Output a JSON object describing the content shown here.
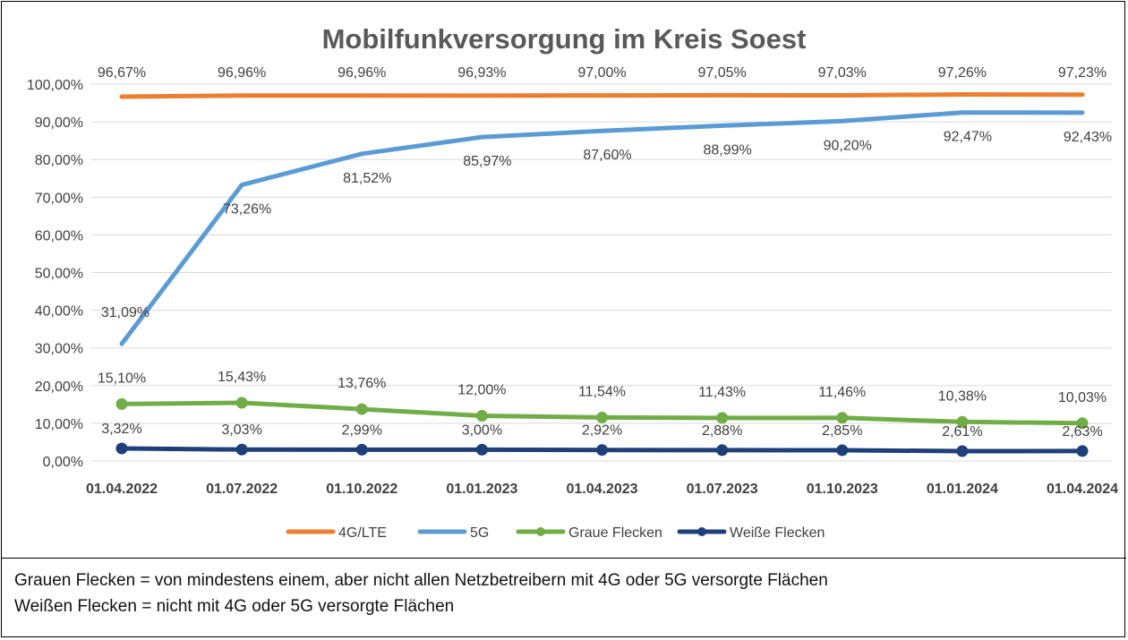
{
  "chart_data": {
    "type": "line",
    "title": "Mobilfunkversorgung im Kreis Soest",
    "xlabel": "",
    "ylabel": "",
    "categories": [
      "01.04.2022",
      "01.07.2022",
      "01.10.2022",
      "01.01.2023",
      "01.04.2023",
      "01.07.2023",
      "01.10.2023",
      "01.01.2024",
      "01.04.2024"
    ],
    "ylim": [
      0,
      100
    ],
    "yticks": [
      "0,00%",
      "10,00%",
      "20,00%",
      "30,00%",
      "40,00%",
      "50,00%",
      "60,00%",
      "70,00%",
      "80,00%",
      "90,00%",
      "100,00%"
    ],
    "grid": true,
    "legend_position": "bottom",
    "series": [
      {
        "name": "4G/LTE",
        "color": "#ED7D31",
        "markers": false,
        "values": [
          96.67,
          96.96,
          96.96,
          96.93,
          97.0,
          97.05,
          97.03,
          97.26,
          97.23
        ],
        "labels": [
          "96,67%",
          "96,96%",
          "96,96%",
          "96,93%",
          "97,00%",
          "97,05%",
          "97,03%",
          "97,26%",
          "97,23%"
        ]
      },
      {
        "name": "5G",
        "color": "#5B9BD5",
        "markers": false,
        "values": [
          31.09,
          73.26,
          81.52,
          85.97,
          87.6,
          88.99,
          90.2,
          92.47,
          92.43
        ],
        "labels": [
          "31,09%",
          "73,26%",
          "81,52%",
          "85,97%",
          "87,60%",
          "88,99%",
          "90,20%",
          "92,47%",
          "92,43%"
        ]
      },
      {
        "name": "Graue Flecken",
        "color": "#70AD47",
        "markers": true,
        "values": [
          15.1,
          15.43,
          13.76,
          12.0,
          11.54,
          11.43,
          11.46,
          10.38,
          10.03
        ],
        "labels": [
          "15,10%",
          "15,43%",
          "13,76%",
          "12,00%",
          "11,54%",
          "11,43%",
          "11,46%",
          "10,38%",
          "10,03%"
        ]
      },
      {
        "name": "Weiße Flecken",
        "color": "#1F3F7A",
        "markers": true,
        "values": [
          3.32,
          3.03,
          2.99,
          3.0,
          2.92,
          2.88,
          2.85,
          2.61,
          2.63
        ],
        "labels": [
          "3,32%",
          "3,03%",
          "2,99%",
          "3,00%",
          "2,92%",
          "2,88%",
          "2,85%",
          "2,61%",
          "2,63%"
        ]
      }
    ]
  },
  "footnote": {
    "line1": "Grauen Flecken = von mindestens einem, aber nicht allen Netzbetreibern mit 4G oder 5G versorgte Flächen",
    "line2": "Weißen Flecken = nicht mit 4G oder 5G versorgte Flächen"
  }
}
